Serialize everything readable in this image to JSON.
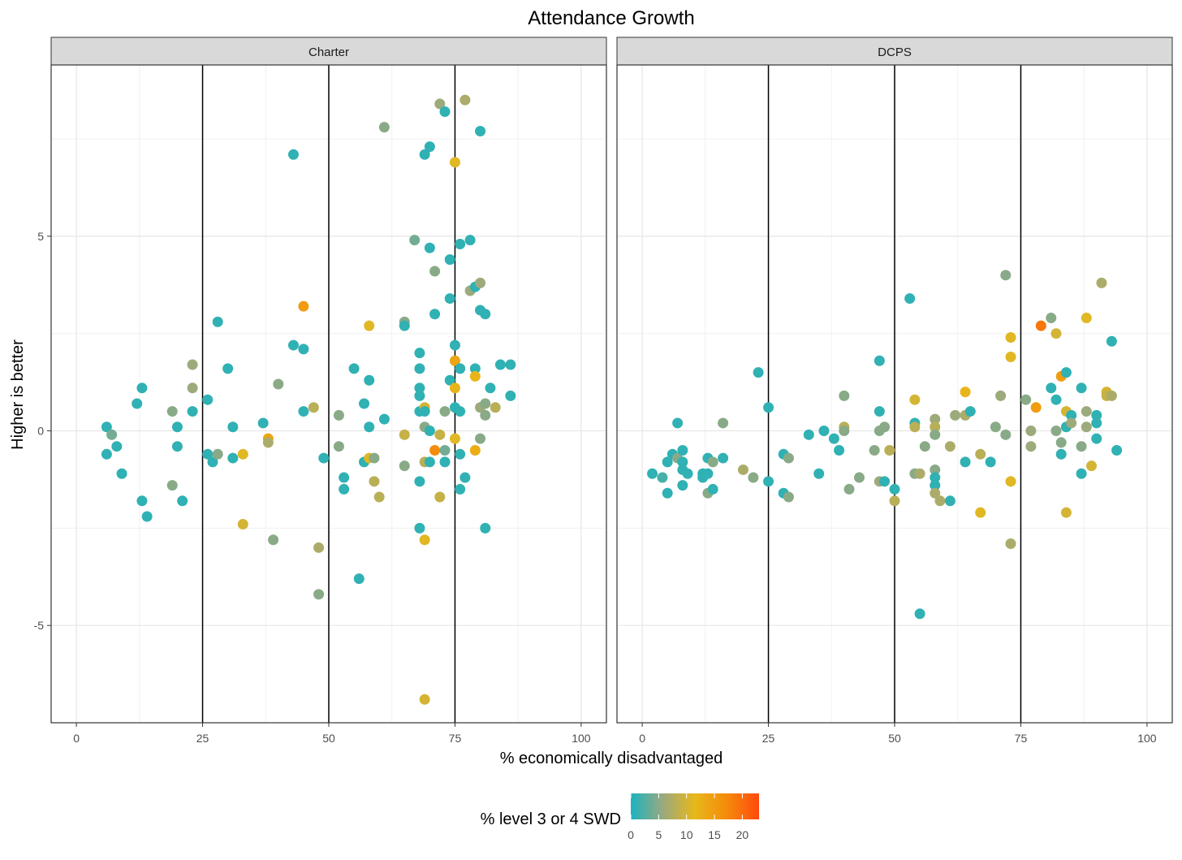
{
  "chart_data": {
    "type": "scatter",
    "title": "Attendance Growth",
    "xlabel": "% economically disadvantaged",
    "ylabel": "Higher is better",
    "xlim": [
      -5,
      105
    ],
    "ylim": [
      -7.5,
      9.4
    ],
    "x_ticks": [
      0,
      25,
      50,
      75,
      100
    ],
    "x_tick_labels": [
      "0",
      "25",
      "50",
      "75",
      "100"
    ],
    "y_ticks": [
      -5,
      0,
      5
    ],
    "y_tick_labels": [
      "-5",
      "0",
      "5"
    ],
    "vlines": [
      25,
      50,
      75
    ],
    "grid": true,
    "legend": {
      "title": "% level 3 or 4 SWD",
      "position": "bottom",
      "range": [
        0,
        23
      ],
      "ticks": [
        0,
        5,
        10,
        15,
        20
      ],
      "tick_labels": [
        "0",
        "5",
        "10",
        "15",
        "20"
      ],
      "colors": [
        "#1ab3bf",
        "#9aa97f",
        "#e8b81a",
        "#f58a0a",
        "#ff4a0d"
      ]
    },
    "panels": [
      {
        "name": "Charter",
        "points": [
          [
            6,
            0.1,
            1
          ],
          [
            7,
            -0.1,
            4
          ],
          [
            6,
            -0.6,
            1
          ],
          [
            8,
            -0.4,
            1
          ],
          [
            9,
            -1.1,
            1
          ],
          [
            12,
            0.7,
            1
          ],
          [
            13,
            1.1,
            1
          ],
          [
            13,
            -1.8,
            1
          ],
          [
            14,
            -2.2,
            1
          ],
          [
            19,
            0.5,
            5
          ],
          [
            19,
            -1.4,
            5
          ],
          [
            20,
            0.1,
            1
          ],
          [
            20,
            -0.4,
            1
          ],
          [
            21,
            -1.8,
            1
          ],
          [
            23,
            1.7,
            6
          ],
          [
            23,
            1.1,
            6
          ],
          [
            23,
            0.5,
            1
          ],
          [
            26,
            0.8,
            1
          ],
          [
            26,
            -0.6,
            1
          ],
          [
            27,
            -0.8,
            1
          ],
          [
            28,
            2.8,
            1
          ],
          [
            28,
            -0.6,
            5
          ],
          [
            30,
            1.6,
            1
          ],
          [
            31,
            0.1,
            1
          ],
          [
            31,
            -0.7,
            1
          ],
          [
            33,
            -0.6,
            11
          ],
          [
            33,
            -2.4,
            10
          ],
          [
            37,
            0.2,
            1
          ],
          [
            38,
            -0.2,
            14
          ],
          [
            38,
            -0.3,
            7
          ],
          [
            39,
            -2.8,
            5
          ],
          [
            40,
            1.2,
            5
          ],
          [
            43,
            7.1,
            1
          ],
          [
            43,
            2.2,
            1
          ],
          [
            45,
            2.1,
            1
          ],
          [
            45,
            0.5,
            1
          ],
          [
            45,
            3.2,
            15
          ],
          [
            47,
            0.6,
            8
          ],
          [
            48,
            -3.0,
            7
          ],
          [
            48,
            -4.2,
            5
          ],
          [
            49,
            -0.7,
            1
          ],
          [
            52,
            0.4,
            5
          ],
          [
            52,
            -0.4,
            5
          ],
          [
            53,
            -1.2,
            1
          ],
          [
            53,
            -1.5,
            1
          ],
          [
            55,
            1.6,
            1
          ],
          [
            57,
            0.7,
            1
          ],
          [
            57,
            -0.8,
            1
          ],
          [
            58,
            1.3,
            1
          ],
          [
            58,
            0.1,
            1
          ],
          [
            58,
            2.7,
            11
          ],
          [
            58,
            -0.7,
            11
          ],
          [
            59,
            -0.7,
            5
          ],
          [
            59,
            -1.3,
            8
          ],
          [
            60,
            -1.7,
            8
          ],
          [
            61,
            7.8,
            5
          ],
          [
            61,
            0.3,
            1
          ],
          [
            56,
            -3.8,
            1
          ],
          [
            65,
            2.8,
            5
          ],
          [
            65,
            2.7,
            1
          ],
          [
            65,
            -0.1,
            9
          ],
          [
            65,
            -0.9,
            5
          ],
          [
            67,
            4.9,
            4
          ],
          [
            68,
            2.0,
            1
          ],
          [
            68,
            1.6,
            1
          ],
          [
            68,
            1.1,
            1
          ],
          [
            68,
            0.9,
            1
          ],
          [
            68,
            0.5,
            1
          ],
          [
            68,
            -1.3,
            1
          ],
          [
            68,
            -2.5,
            1
          ],
          [
            69,
            7.1,
            1
          ],
          [
            69,
            0.6,
            10
          ],
          [
            69,
            0.5,
            1
          ],
          [
            69,
            0.1,
            5
          ],
          [
            69,
            -0.8,
            8
          ],
          [
            69,
            -2.8,
            11
          ],
          [
            69,
            -6.9,
            10
          ],
          [
            70,
            7.3,
            1
          ],
          [
            70,
            4.7,
            1
          ],
          [
            70,
            0.0,
            1
          ],
          [
            70,
            -0.8,
            1
          ],
          [
            71,
            4.1,
            5
          ],
          [
            71,
            3.0,
            1
          ],
          [
            71,
            -0.5,
            17
          ],
          [
            72,
            8.4,
            6
          ],
          [
            72,
            -0.1,
            9
          ],
          [
            72,
            -1.7,
            9
          ],
          [
            73,
            8.2,
            1
          ],
          [
            73,
            0.5,
            5
          ],
          [
            73,
            -0.5,
            4
          ],
          [
            73,
            -0.8,
            1
          ],
          [
            74,
            4.4,
            1
          ],
          [
            74,
            3.4,
            1
          ],
          [
            74,
            1.3,
            1
          ],
          [
            75,
            6.9,
            11
          ],
          [
            75,
            2.2,
            1
          ],
          [
            75,
            1.8,
            14
          ],
          [
            75,
            1.1,
            12
          ],
          [
            75,
            0.6,
            1
          ],
          [
            75,
            -0.2,
            11
          ],
          [
            76,
            4.8,
            1
          ],
          [
            76,
            1.6,
            1
          ],
          [
            76,
            0.5,
            1
          ],
          [
            76,
            -0.6,
            1
          ],
          [
            76,
            -1.5,
            1
          ],
          [
            77,
            8.5,
            7
          ],
          [
            77,
            -1.2,
            1
          ],
          [
            78,
            4.9,
            1
          ],
          [
            78,
            3.6,
            6
          ],
          [
            79,
            3.7,
            1
          ],
          [
            79,
            1.6,
            1
          ],
          [
            79,
            1.4,
            12
          ],
          [
            79,
            -0.5,
            13
          ],
          [
            80,
            7.7,
            1
          ],
          [
            80,
            3.8,
            6
          ],
          [
            80,
            3.1,
            1
          ],
          [
            80,
            0.6,
            6
          ],
          [
            80,
            -0.2,
            5
          ],
          [
            81,
            3.0,
            1
          ],
          [
            81,
            0.7,
            5
          ],
          [
            81,
            0.4,
            5
          ],
          [
            81,
            -2.5,
            1
          ],
          [
            82,
            1.1,
            1
          ],
          [
            83,
            0.6,
            8
          ],
          [
            84,
            1.7,
            1
          ],
          [
            86,
            1.7,
            1
          ],
          [
            86,
            0.9,
            1
          ]
        ]
      },
      {
        "name": "DCPS",
        "points": [
          [
            2,
            -1.1,
            1
          ],
          [
            4,
            -1.2,
            2
          ],
          [
            5,
            -0.8,
            1
          ],
          [
            5,
            -1.6,
            1
          ],
          [
            6,
            -0.6,
            1
          ],
          [
            7,
            0.2,
            1
          ],
          [
            7,
            -0.7,
            5
          ],
          [
            8,
            -0.5,
            1
          ],
          [
            8,
            -0.8,
            1
          ],
          [
            8,
            -1.0,
            1
          ],
          [
            8,
            -1.4,
            1
          ],
          [
            9,
            -1.1,
            1
          ],
          [
            12,
            -1.1,
            1
          ],
          [
            12,
            -1.2,
            1
          ],
          [
            13,
            -0.7,
            1
          ],
          [
            13,
            -1.1,
            1
          ],
          [
            13,
            -1.6,
            5
          ],
          [
            14,
            -1.5,
            1
          ],
          [
            14,
            -0.8,
            5
          ],
          [
            16,
            -0.7,
            1
          ],
          [
            16,
            0.2,
            5
          ],
          [
            20,
            -1.0,
            7
          ],
          [
            22,
            -1.2,
            5
          ],
          [
            23,
            1.5,
            1
          ],
          [
            25,
            0.6,
            1
          ],
          [
            25,
            -1.3,
            1
          ],
          [
            28,
            -0.6,
            1
          ],
          [
            28,
            -1.6,
            1
          ],
          [
            29,
            -0.7,
            5
          ],
          [
            29,
            -1.7,
            5
          ],
          [
            33,
            -0.1,
            1
          ],
          [
            35,
            -1.1,
            1
          ],
          [
            36,
            0.0,
            1
          ],
          [
            38,
            -0.2,
            1
          ],
          [
            39,
            -0.5,
            1
          ],
          [
            40,
            0.9,
            5
          ],
          [
            40,
            0.1,
            8
          ],
          [
            40,
            0.0,
            5
          ],
          [
            41,
            -1.5,
            5
          ],
          [
            43,
            -1.2,
            5
          ],
          [
            46,
            -0.5,
            5
          ],
          [
            47,
            1.8,
            1
          ],
          [
            47,
            0.5,
            1
          ],
          [
            47,
            0.0,
            5
          ],
          [
            47,
            -1.3,
            6
          ],
          [
            48,
            0.1,
            5
          ],
          [
            48,
            -1.3,
            1
          ],
          [
            49,
            -0.5,
            8
          ],
          [
            50,
            -1.5,
            1
          ],
          [
            50,
            -1.8,
            8
          ],
          [
            53,
            3.4,
            1
          ],
          [
            54,
            0.8,
            10
          ],
          [
            54,
            0.2,
            1
          ],
          [
            54,
            0.1,
            8
          ],
          [
            54,
            -1.1,
            5
          ],
          [
            55,
            -1.1,
            7
          ],
          [
            55,
            -4.7,
            1
          ],
          [
            56,
            -0.4,
            5
          ],
          [
            58,
            0.3,
            6
          ],
          [
            58,
            0.1,
            8
          ],
          [
            58,
            -0.1,
            5
          ],
          [
            58,
            -1.0,
            5
          ],
          [
            58,
            -1.2,
            1
          ],
          [
            58,
            -1.4,
            1
          ],
          [
            58,
            -1.6,
            7
          ],
          [
            59,
            -1.8,
            7
          ],
          [
            61,
            -0.4,
            7
          ],
          [
            61,
            -1.8,
            1
          ],
          [
            62,
            0.4,
            6
          ],
          [
            64,
            1.0,
            12
          ],
          [
            64,
            0.4,
            7
          ],
          [
            64,
            -0.8,
            1
          ],
          [
            65,
            0.5,
            1
          ],
          [
            67,
            -0.6,
            8
          ],
          [
            67,
            -2.1,
            11
          ],
          [
            69,
            -0.8,
            1
          ],
          [
            70,
            0.1,
            5
          ],
          [
            71,
            0.9,
            6
          ],
          [
            72,
            4.0,
            5
          ],
          [
            72,
            -0.1,
            5
          ],
          [
            73,
            2.4,
            11
          ],
          [
            73,
            1.9,
            11
          ],
          [
            73,
            -1.3,
            11
          ],
          [
            73,
            -2.9,
            7
          ],
          [
            76,
            0.8,
            5
          ],
          [
            77,
            0.0,
            6
          ],
          [
            77,
            -0.4,
            6
          ],
          [
            78,
            0.6,
            15
          ],
          [
            79,
            2.7,
            19
          ],
          [
            81,
            2.9,
            5
          ],
          [
            81,
            1.1,
            1
          ],
          [
            82,
            2.5,
            10
          ],
          [
            82,
            0.8,
            1
          ],
          [
            82,
            0.0,
            5
          ],
          [
            83,
            1.4,
            15
          ],
          [
            83,
            -0.3,
            5
          ],
          [
            83,
            -0.6,
            1
          ],
          [
            84,
            1.5,
            1
          ],
          [
            84,
            0.5,
            10
          ],
          [
            84,
            0.1,
            1
          ],
          [
            84,
            -2.1,
            10
          ],
          [
            85,
            0.4,
            1
          ],
          [
            85,
            0.2,
            6
          ],
          [
            87,
            1.1,
            1
          ],
          [
            87,
            -0.4,
            5
          ],
          [
            87,
            -1.1,
            1
          ],
          [
            88,
            2.9,
            11
          ],
          [
            88,
            0.5,
            6
          ],
          [
            88,
            0.1,
            6
          ],
          [
            89,
            -0.9,
            10
          ],
          [
            90,
            0.4,
            1
          ],
          [
            90,
            0.2,
            1
          ],
          [
            90,
            -0.2,
            1
          ],
          [
            91,
            3.8,
            7
          ],
          [
            92,
            1.0,
            10
          ],
          [
            92,
            0.9,
            9
          ],
          [
            93,
            0.9,
            7
          ],
          [
            93,
            2.3,
            1
          ],
          [
            94,
            -0.5,
            1
          ]
        ]
      }
    ]
  }
}
